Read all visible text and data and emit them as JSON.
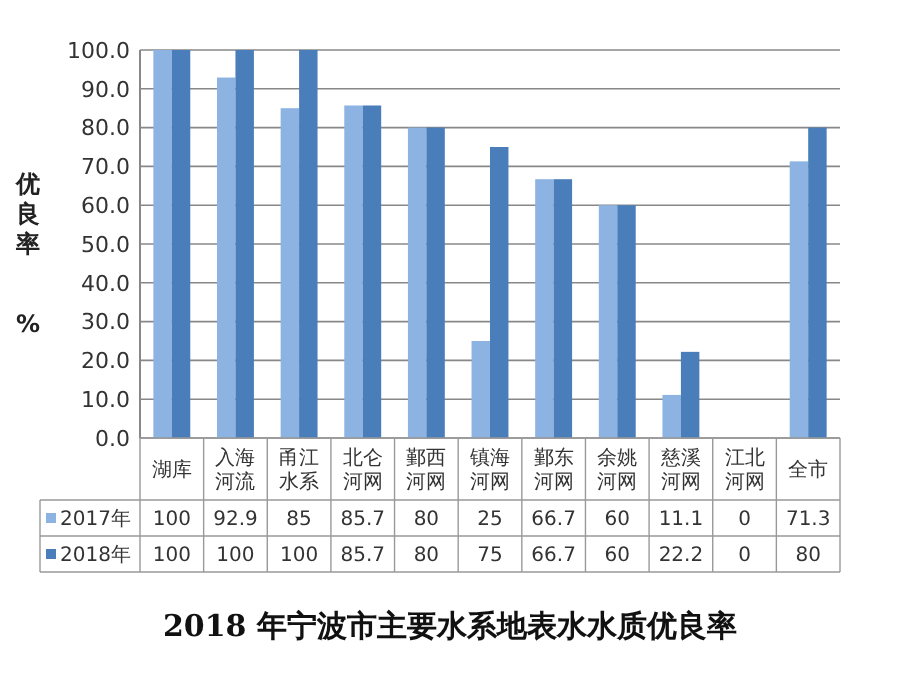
{
  "chart_data": {
    "type": "bar",
    "title": "2018 年宁波市主要水系地表水水质优良率",
    "ylabel": "优良率 %",
    "categories": [
      "湖库",
      "入海河流",
      "甬江水系",
      "北仑河网",
      "鄞西河网",
      "镇海河网",
      "鄞东河网",
      "余姚河网",
      "慈溪河网",
      "江北河网",
      "全市"
    ],
    "series": [
      {
        "name": "2017年",
        "color": "#8db3e2",
        "values": [
          100,
          92.9,
          85,
          85.7,
          80,
          25,
          66.7,
          60,
          11.1,
          0,
          71.3
        ]
      },
      {
        "name": "2018年",
        "color": "#4a7ebb",
        "values": [
          100,
          100,
          100,
          85.7,
          80,
          75,
          66.7,
          60,
          22.2,
          0,
          80
        ]
      }
    ],
    "ylim": [
      0,
      100
    ],
    "yticks": [
      {
        "value": 0,
        "label": "0.0"
      },
      {
        "value": 10,
        "label": "10.0"
      },
      {
        "value": 20,
        "label": "20.0"
      },
      {
        "value": 30,
        "label": "30.0"
      },
      {
        "value": 40,
        "label": "40.0"
      },
      {
        "value": 50,
        "label": "50.0"
      },
      {
        "value": 60,
        "label": "60.0"
      },
      {
        "value": 70,
        "label": "70.0"
      },
      {
        "value": 80,
        "label": "80.0"
      },
      {
        "value": 90,
        "label": "90.0"
      },
      {
        "value": 100,
        "label": "100.0"
      }
    ],
    "grid": "y",
    "legend": "bottom",
    "data_labels": true
  }
}
